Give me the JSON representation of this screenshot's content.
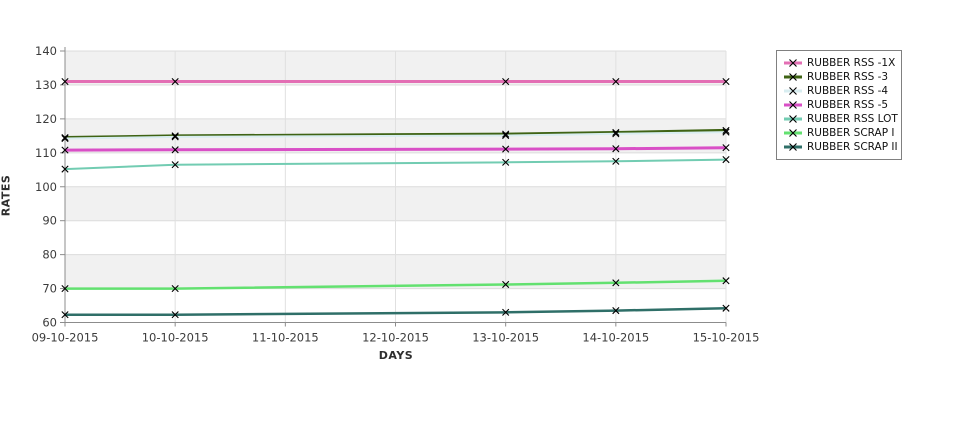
{
  "chart_data": {
    "type": "line",
    "title": "",
    "xlabel": "DAYS",
    "ylabel": "RATES",
    "categories": [
      "09-10-2015",
      "10-10-2015",
      "11-10-2015",
      "12-10-2015",
      "13-10-2015",
      "14-10-2015",
      "15-10-2015"
    ],
    "ylim": [
      60,
      140
    ],
    "ytick_step": 10,
    "grid": true,
    "legend_position": "right",
    "marker": "x",
    "marker_color": "#000000",
    "series": [
      {
        "name": "RUBBER RSS -1X",
        "color": "#e36fb4",
        "width": 3,
        "points": [
          [
            0,
            131
          ],
          [
            1,
            131
          ],
          [
            4,
            131
          ],
          [
            5,
            131
          ],
          [
            6,
            131
          ]
        ]
      },
      {
        "name": "RUBBER RSS -3",
        "color": "#3f6314",
        "width": 3,
        "points": [
          [
            0,
            114.5
          ],
          [
            1,
            115
          ],
          [
            4,
            115.5
          ],
          [
            5,
            116
          ],
          [
            6,
            116.6
          ]
        ]
      },
      {
        "name": "RUBBER RSS -4",
        "color": "#d8edf0",
        "width": 2,
        "points": [
          [
            0,
            114.2
          ],
          [
            1,
            114.7
          ],
          [
            4,
            115.1
          ],
          [
            5,
            115.6
          ],
          [
            6,
            116.1
          ]
        ]
      },
      {
        "name": "RUBBER RSS -5",
        "color": "#d94fc6",
        "width": 3,
        "points": [
          [
            0,
            110.8
          ],
          [
            1,
            110.9
          ],
          [
            4,
            111.1
          ],
          [
            5,
            111.2
          ],
          [
            6,
            111.5
          ]
        ]
      },
      {
        "name": "RUBBER RSS LOT",
        "color": "#72ccb2",
        "width": 2,
        "points": [
          [
            0,
            105.2
          ],
          [
            1,
            106.5
          ],
          [
            4,
            107.2
          ],
          [
            5,
            107.5
          ],
          [
            6,
            108
          ]
        ]
      },
      {
        "name": "RUBBER SCRAP I",
        "color": "#63e170",
        "width": 2.5,
        "points": [
          [
            0,
            70
          ],
          [
            1,
            70
          ],
          [
            4,
            71.2
          ],
          [
            5,
            71.7
          ],
          [
            6,
            72.3
          ]
        ]
      },
      {
        "name": "RUBBER SCRAP II",
        "color": "#2f6f68",
        "width": 2.5,
        "points": [
          [
            0,
            62.3
          ],
          [
            1,
            62.3
          ],
          [
            4,
            63
          ],
          [
            5,
            63.5
          ],
          [
            6,
            64.2
          ]
        ]
      }
    ],
    "style": {
      "band_fill_even": "#ffffff",
      "band_fill_odd": "#f1f1f1",
      "gridline_color": "#e0e0e0",
      "band_edge_color": "#dcdcdc",
      "axis_color": "#8c8c8c",
      "tick_label_color": "#3c3c3c"
    }
  }
}
